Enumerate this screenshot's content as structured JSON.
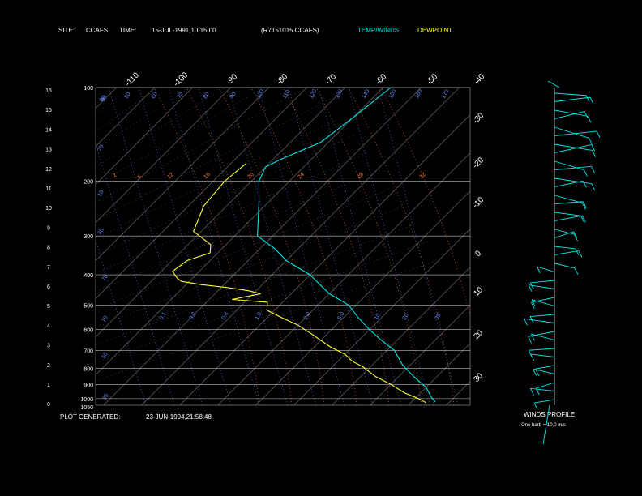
{
  "header": {
    "site_label": "SITE:",
    "site": "CCAFS",
    "time_label": "TIME:",
    "time": "15-JUL-1991,10:15:00",
    "file": "(R7151015.CCAFS)",
    "legend_temp": "TEMP/WINDS",
    "legend_dew": "DEWPOINT"
  },
  "footer": {
    "generated_label": "PLOT GENERATED:",
    "generated": "23-JUN-1994,21:58:48"
  },
  "winds": {
    "title": "WINDS PROFILE",
    "scale_note": "One barb = 10.0 m/s"
  },
  "colors": {
    "temp": "#00e5e5",
    "dew": "#ffff33",
    "grid": "#ffffff",
    "mixing": "#6a8cff",
    "adiabat": "#ff7f40"
  },
  "chart_data": {
    "type": "line",
    "title": "",
    "pressure_labels": [
      "100",
      "200",
      "300",
      "400",
      "500",
      "600",
      "700",
      "800",
      "900",
      "1000",
      "1050"
    ],
    "height_labels": [
      "16",
      "15",
      "14",
      "13",
      "12",
      "11",
      "10",
      "9",
      "8",
      "7",
      "6",
      "5",
      "4",
      "3",
      "2",
      "1",
      "0"
    ],
    "temp_top_labels": [
      "-110",
      "-100",
      "-90",
      "-80",
      "-70",
      "-60",
      "-50",
      "-40"
    ],
    "temp_right_labels": [
      "-30",
      "-20",
      "-10",
      "0",
      "10",
      "20",
      "30"
    ],
    "mixing_ratio_labels": [
      "90",
      "50",
      "60",
      "70",
      "80",
      "90",
      "100",
      "110",
      "120",
      "130",
      "140",
      "150",
      "160",
      "170",
      "0.1",
      "0.2",
      "0.4",
      "1.0",
      "2.0",
      "5.0",
      "10",
      "20",
      "35"
    ],
    "adiabat_labels": [
      "-2",
      "6",
      "12",
      "16",
      "20",
      "24",
      "28",
      "32"
    ],
    "series": [
      {
        "name": "TEMP/WINDS",
        "points": [
          [
            -68,
            100
          ],
          [
            -70,
            125
          ],
          [
            -72,
            150
          ],
          [
            -78,
            170
          ],
          [
            -80,
            180
          ],
          [
            -78,
            200
          ],
          [
            -73,
            230
          ],
          [
            -64,
            300
          ],
          [
            -56,
            330
          ],
          [
            -50,
            360
          ],
          [
            -40,
            400
          ],
          [
            -30,
            460
          ],
          [
            -22,
            500
          ],
          [
            -16,
            550
          ],
          [
            -10,
            600
          ],
          [
            -4,
            650
          ],
          [
            2,
            700
          ],
          [
            8,
            780
          ],
          [
            14,
            850
          ],
          [
            20,
            920
          ],
          [
            24,
            990
          ],
          [
            26,
            1020
          ],
          [
            26,
            1030
          ]
        ]
      },
      {
        "name": "DEWPOINT",
        "points": [
          [
            -86,
            175
          ],
          [
            -87,
            200
          ],
          [
            -86,
            240
          ],
          [
            -82,
            290
          ],
          [
            -74,
            320
          ],
          [
            -72,
            340
          ],
          [
            -76,
            360
          ],
          [
            -77,
            390
          ],
          [
            -74,
            410
          ],
          [
            -72,
            420
          ],
          [
            -66,
            430
          ],
          [
            -58,
            440
          ],
          [
            -52,
            450
          ],
          [
            -48,
            460
          ],
          [
            -54,
            480
          ],
          [
            -44,
            490
          ],
          [
            -42,
            520
          ],
          [
            -36,
            550
          ],
          [
            -30,
            580
          ],
          [
            -24,
            620
          ],
          [
            -16,
            680
          ],
          [
            -10,
            720
          ],
          [
            -6,
            760
          ],
          [
            -2,
            790
          ],
          [
            4,
            850
          ],
          [
            10,
            900
          ],
          [
            16,
            960
          ],
          [
            21,
            1000
          ],
          [
            24,
            1030
          ]
        ]
      }
    ],
    "wind_speeds": [
      24,
      31,
      30,
      28,
      40,
      40,
      36,
      38,
      30,
      32,
      34,
      24,
      26,
      20,
      18,
      22,
      12,
      14,
      10,
      16,
      12,
      10,
      14,
      18,
      16,
      18,
      14,
      24,
      20,
      18,
      16,
      14,
      12,
      10,
      12,
      14,
      10
    ],
    "grid": true
  }
}
